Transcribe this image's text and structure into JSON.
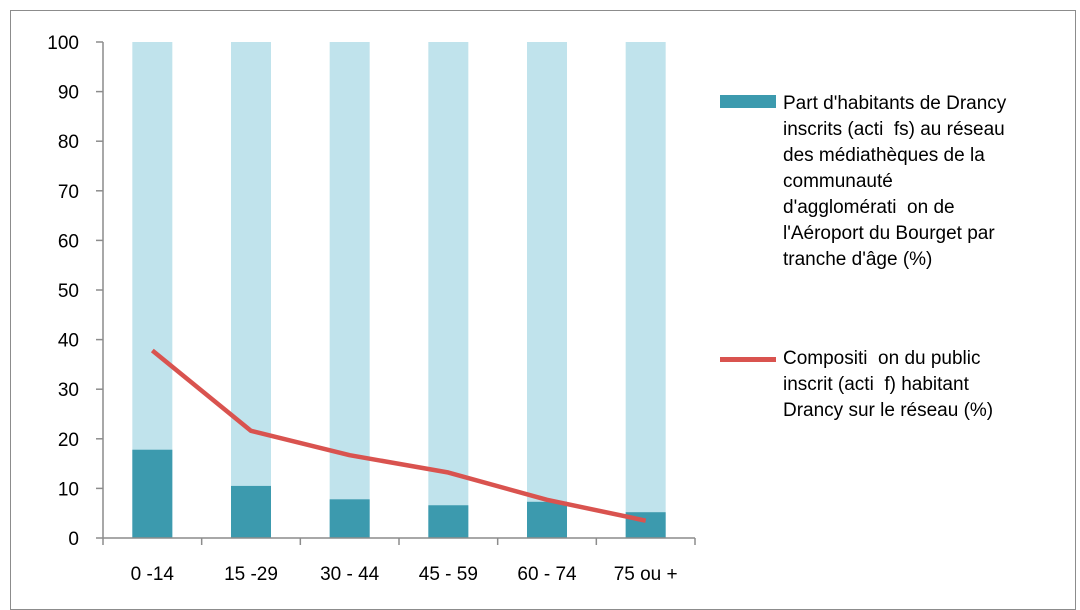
{
  "chart_data": {
    "type": "bar",
    "categories": [
      "0 -14",
      "15 -29",
      "30 - 44",
      "45 - 59",
      "60 - 74",
      "75 ou +"
    ],
    "ylim": [
      0,
      100
    ],
    "yticks": [
      0,
      10,
      20,
      30,
      40,
      50,
      60,
      70,
      80,
      90,
      100
    ],
    "grid": false,
    "legend_position": "right",
    "series": [
      {
        "name": "Part d'habitants de Drancy inscrits (actifs) au réseau des médiathèques de la communauté d'agglomération de l'Aéroport du Bourget par tranche d'âge (%)",
        "type": "bar",
        "color": "#3c9aae",
        "background_color": "#c0e3ec",
        "values": [
          17.8,
          10.5,
          7.8,
          6.6,
          7.3,
          5.2
        ]
      },
      {
        "name": "Composition du public inscrit (actif) habitant Drancy sur le réseau (%)",
        "type": "line",
        "color": "#d9534f",
        "values": [
          37.8,
          21.6,
          16.7,
          13.2,
          7.7,
          3.5
        ]
      }
    ]
  },
  "legend": {
    "bar_label": "Part d'habitants de Drancy\ninscrits (acti  fs) au réseau\ndes médiathèques de la\ncommunauté\nd'agglomérati  on de\nl'Aéroport du Bourget par\ntranche d'âge (%)",
    "line_label": "Compositi  on du public\ninscrit (acti  f) habitant\nDrancy sur le réseau (%)"
  }
}
